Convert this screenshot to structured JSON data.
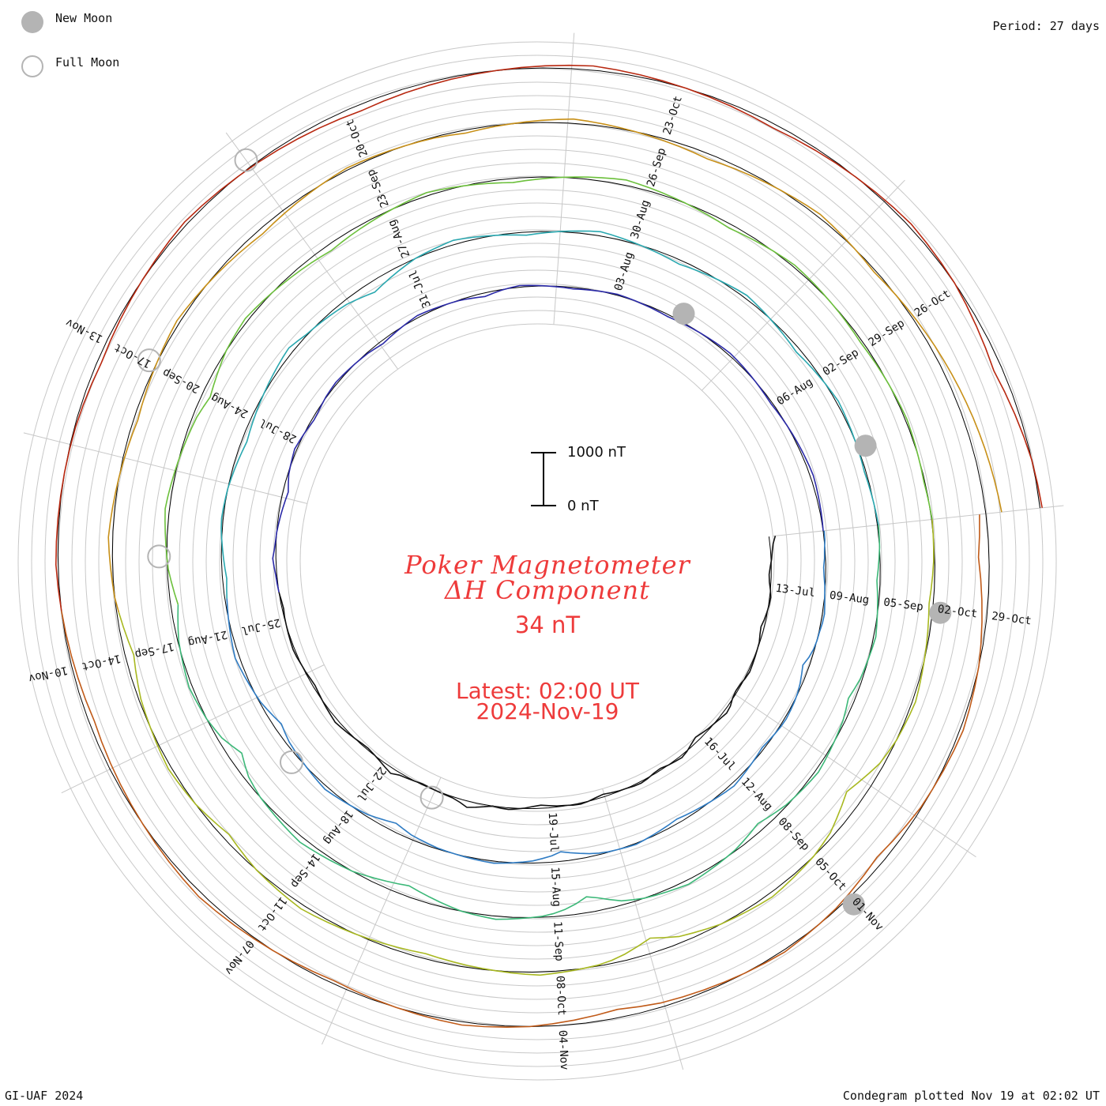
{
  "legend": {
    "new_moon": "New Moon",
    "full_moon": "Full Moon",
    "new_moon_color": "#b4b4b4",
    "full_moon_color": "#b4b4b4"
  },
  "header": {
    "period": "Period: 27 days"
  },
  "footer": {
    "credit": "GI-UAF 2024",
    "plotted": "Condegram plotted Nov 19 at 02:02 UT"
  },
  "center": {
    "title_line1": "Poker Magnetometer",
    "title_line2": "ΔH Component",
    "current_value": "34 nT",
    "latest_time": "Latest: 02:00 UT",
    "latest_date": "2024-Nov-19"
  },
  "scale_bar": {
    "top_label": "1000 nT",
    "bottom_label": "0 nT"
  },
  "chart_data": {
    "type": "line",
    "projection": "spiral condegram",
    "period_days": 27,
    "quantity": "ΔH Component",
    "unit": "nT",
    "scale_bar_nT": [
      0,
      1000
    ],
    "colors": {
      "cycles": [
        "#111111",
        "#2b2aa8",
        "#2f7cc4",
        "#2aa8b0",
        "#3cb878",
        "#6cc03c",
        "#a8b820",
        "#c89018",
        "#c05a18",
        "#b82810"
      ],
      "rings": "#c8c8c8",
      "baseline": "#000000",
      "title": "#ee3b3b"
    },
    "cycles": [
      {
        "start": "2024-07-12",
        "tick_labels": [
          "13-Jul",
          "16-Jul",
          "19-Jul",
          "22-Jul",
          "25-Jul",
          "28-Jul",
          "31-Jul",
          "03-Aug",
          "06-Aug"
        ],
        "values_nT": [
          120,
          60,
          30,
          10,
          -20,
          -40,
          -30,
          0,
          20,
          10,
          -10,
          -30,
          -60,
          -40,
          -10,
          0,
          10,
          20,
          30,
          10,
          -20,
          -30,
          -10,
          40,
          60,
          30,
          0,
          -20,
          -50,
          -80,
          -40,
          10,
          40,
          20,
          0,
          -30,
          -20,
          10,
          30,
          20,
          0,
          -10,
          -30,
          -50,
          -30,
          0,
          20,
          10,
          -10,
          -20,
          -40,
          -60,
          -40,
          -10,
          10,
          30,
          20,
          0,
          40,
          80,
          120,
          60,
          20,
          10,
          0,
          -10,
          -20,
          0,
          20,
          40,
          100,
          60,
          20,
          -10,
          -30,
          -20,
          0,
          20,
          40,
          60,
          40,
          20,
          0,
          -20,
          -40,
          -30,
          -10,
          0,
          20,
          30,
          20,
          10,
          0,
          -10,
          -30,
          -20,
          0,
          10,
          20,
          40,
          60,
          30,
          10,
          0,
          -20,
          -40,
          -60,
          -80,
          -100,
          -60,
          -20,
          0,
          20,
          40,
          20,
          0,
          -20,
          -40,
          -30,
          -10,
          10,
          20,
          30,
          20,
          10,
          0,
          -10,
          -20,
          -40,
          -60,
          -40,
          -20,
          0,
          20,
          40,
          30,
          20,
          10,
          0,
          -10,
          -30,
          -50,
          -70,
          -40,
          -10,
          10,
          30,
          20,
          10,
          0,
          -10,
          -20,
          -30,
          -20,
          -10,
          0,
          10,
          20,
          10,
          0,
          -10,
          -20,
          -30,
          -40,
          -30,
          -20,
          -10,
          0,
          10,
          20,
          30,
          40,
          30,
          20,
          10,
          0,
          -10,
          -20,
          -30,
          -20,
          -10,
          0,
          10,
          20,
          30,
          40,
          50,
          60,
          50,
          40,
          30,
          20,
          10,
          0
        ]
      },
      {
        "start": "2024-08-08",
        "tick_labels": [
          "09-Aug",
          "12-Aug",
          "15-Aug",
          "18-Aug",
          "21-Aug",
          "24-Aug",
          "27-Aug",
          "30-Aug",
          "02-Sep"
        ],
        "values_nT": [
          20,
          10,
          -10,
          -20,
          -40,
          -30,
          -10,
          0,
          20,
          40,
          30,
          10,
          0,
          -20,
          -60,
          -120,
          -80,
          -40,
          -10,
          10,
          20,
          30,
          20,
          0,
          -20,
          -40,
          -20,
          0,
          20,
          40,
          60,
          40,
          20,
          0,
          -20,
          -40,
          -60,
          -80,
          -60,
          -40,
          -20,
          0,
          20,
          10,
          0,
          -10,
          -30,
          -60,
          -100,
          -140,
          -180,
          -120,
          -80,
          -40,
          -20,
          0,
          20,
          40,
          30,
          20,
          10,
          0,
          -10,
          -20,
          -40,
          -60,
          -80,
          -120,
          -160,
          -120,
          -80,
          -40,
          -20,
          0,
          20,
          40,
          60,
          40,
          20,
          0,
          -20,
          -40,
          -60,
          -100,
          -140,
          -100,
          -60,
          -20,
          0,
          20,
          40,
          60,
          80,
          60,
          40,
          20,
          0,
          -20,
          -40,
          -60,
          -80,
          -60,
          -40,
          -20,
          0,
          20,
          30,
          20,
          10,
          0,
          -20,
          -40,
          -60,
          -80,
          -100,
          -80,
          -60,
          -40,
          -20,
          0,
          20,
          40,
          60,
          80,
          100,
          60,
          20,
          0,
          -20,
          -40,
          -60,
          -80,
          -120,
          -160,
          -200,
          -160,
          -120,
          -80,
          -40,
          0,
          20,
          40,
          60,
          80,
          60,
          40,
          20,
          0,
          -20,
          -40,
          -60,
          -40,
          -20,
          0,
          20,
          40,
          60,
          80,
          60,
          40,
          20,
          0,
          -20,
          -40,
          -60,
          -80,
          -60,
          -40,
          -20,
          0,
          20,
          40,
          60,
          40,
          20,
          0,
          -20,
          -40,
          -60,
          -80,
          -60,
          -40,
          -20,
          0,
          20,
          40,
          30,
          20,
          10,
          0,
          -10,
          -20,
          -30,
          -20,
          -10,
          0,
          10,
          20
        ]
      },
      {
        "start": "2024-09-04",
        "tick_labels": [
          "05-Sep",
          "08-Sep",
          "11-Sep",
          "14-Sep",
          "17-Sep",
          "20-Sep",
          "23-Sep",
          "26-Sep",
          "29-Sep"
        ],
        "values_nT": [
          20,
          10,
          0,
          -20,
          -40,
          -60,
          -40,
          -20,
          0,
          20,
          40,
          20,
          0,
          -20,
          -40,
          -80,
          -120,
          -80,
          -40,
          -20,
          0,
          20,
          40,
          60,
          40,
          20,
          0,
          -20,
          -60,
          -100,
          -140,
          -100,
          -60,
          -20,
          0,
          20,
          40,
          60,
          80,
          60,
          40,
          20,
          0,
          -40,
          -80,
          -160,
          -240,
          -300,
          -200,
          -120,
          -60,
          -20,
          0,
          20,
          40,
          60,
          40,
          20,
          0,
          -40,
          -80,
          -120,
          -160,
          -200,
          -160,
          -120,
          -80,
          -40,
          0,
          20,
          40,
          60,
          80,
          100,
          80,
          60,
          40,
          20,
          0,
          -40,
          -80,
          -160,
          -240,
          -160,
          -80,
          -40,
          0,
          20,
          40,
          60,
          40,
          20,
          0,
          -20,
          -60,
          -100,
          -140,
          -100,
          -60,
          -20,
          0,
          20,
          40,
          60,
          80,
          60,
          40,
          20,
          0,
          -20,
          -40,
          -60,
          -80,
          -120,
          -160,
          -120,
          -80,
          -40,
          0,
          20,
          40,
          60,
          40,
          20,
          0,
          -20,
          -40,
          -60,
          -80,
          -100,
          -120,
          -100,
          -80,
          -60,
          -40,
          -20,
          0,
          20,
          40,
          60,
          40,
          20,
          0,
          -20,
          -40,
          -60,
          -80,
          -60,
          -40,
          -20,
          0,
          20,
          40,
          60,
          80,
          100,
          80,
          60,
          40,
          20,
          0,
          -20,
          -40,
          -60,
          -80,
          -60,
          -40,
          -20,
          0,
          20,
          40,
          30,
          20,
          10,
          0,
          -10,
          -20,
          -30,
          -40,
          -30,
          -20,
          -10,
          0,
          10,
          20,
          30,
          20,
          10,
          0,
          -10,
          -20,
          -10,
          0,
          10
        ]
      },
      {
        "start": "2024-10-01",
        "tick_labels": [
          "02-Oct",
          "05-Oct",
          "08-Oct",
          "11-Oct",
          "14-Oct",
          "17-Oct",
          "20-Oct",
          "23-Oct",
          "26-Oct"
        ],
        "values_nT": [
          10,
          0,
          -10,
          -20,
          -40,
          -60,
          -80,
          -60,
          -40,
          -20,
          0,
          20,
          40,
          60,
          40,
          20,
          0,
          -40,
          -80,
          -160,
          -240,
          -320,
          -240,
          -160,
          -80,
          -40,
          0,
          20,
          40,
          60,
          80,
          60,
          40,
          20,
          0,
          -40,
          -80,
          -120,
          -200,
          -280,
          -200,
          -120,
          -60,
          -20,
          0,
          20,
          40,
          60,
          40,
          20,
          0,
          -20,
          -40,
          -60,
          -80,
          -100,
          -80,
          -60,
          -40,
          -20,
          0,
          20,
          40,
          60,
          80,
          60,
          40,
          20,
          0,
          -40,
          -80,
          -120,
          -80,
          -40,
          0,
          20,
          40,
          60,
          40,
          20,
          0,
          -20,
          -40,
          -80,
          -120,
          -160,
          -120,
          -80,
          -40,
          0,
          20,
          40,
          60,
          80,
          60,
          40,
          20,
          0,
          -20,
          -40,
          -60,
          -80,
          -60,
          -40,
          -20,
          0,
          20,
          40,
          60,
          40,
          20,
          0,
          -20,
          -40,
          -60,
          -80,
          -100,
          -80,
          -60,
          -40,
          -20,
          0,
          20,
          40,
          30,
          20,
          10,
          0,
          -10,
          -20,
          -40,
          -60,
          -40,
          -20,
          0,
          20,
          40,
          60,
          80,
          60,
          40,
          20,
          0,
          -20,
          -40,
          -60,
          -80,
          -100,
          -80,
          -60,
          -40,
          -20,
          0,
          20,
          40,
          60,
          40,
          20,
          0,
          -20,
          -40,
          -20,
          0,
          20,
          40,
          60,
          80,
          100,
          120,
          140,
          160,
          180,
          200,
          220,
          240,
          260,
          280,
          300
        ]
      },
      {
        "start": "2024-10-28",
        "tick_labels": [
          "29-Oct",
          "01-Nov",
          "04-Nov",
          "07-Nov",
          "10-Nov",
          "13-Nov"
        ],
        "values_nT": [
          -120,
          -160,
          -200,
          -160,
          -120,
          -80,
          -40,
          0,
          20,
          40,
          60,
          40,
          20,
          0,
          -20,
          -60,
          -100,
          -140,
          -100,
          -60,
          -20,
          0,
          20,
          40,
          20,
          0,
          -20,
          -40,
          -60,
          -80,
          -120,
          -160,
          -120,
          -80,
          -40,
          0,
          20,
          40,
          60,
          40,
          20,
          0,
          -20,
          -40,
          -60,
          -40,
          -20,
          0,
          20,
          40,
          60,
          80,
          60,
          40,
          20,
          0,
          -20,
          -40,
          -60,
          -80,
          -100,
          -80,
          -60,
          -40,
          -20,
          0,
          20,
          40,
          30,
          20,
          10,
          0,
          -10,
          -20,
          -40,
          -60,
          -80,
          -60,
          -40,
          -20,
          0,
          20,
          40,
          60,
          40,
          20,
          0,
          -20,
          -40,
          -60,
          -80,
          -100,
          -120,
          -100,
          -80,
          -60,
          -40,
          -20,
          0,
          20,
          40,
          60,
          80,
          60,
          40,
          20,
          0,
          -20,
          -40,
          -60,
          -80,
          -60,
          -40,
          -20,
          0,
          20,
          40,
          60,
          40,
          20,
          0,
          -40,
          -80,
          -120,
          -160,
          -120,
          -80,
          -40,
          0,
          20,
          40
        ]
      }
    ],
    "new_moons": [
      "2024-08-04",
      "2024-09-03",
      "2024-10-02",
      "2024-11-01"
    ],
    "full_moons": [
      "2024-07-21",
      "2024-08-19",
      "2024-09-18",
      "2024-10-17",
      "2024-11-15"
    ]
  }
}
